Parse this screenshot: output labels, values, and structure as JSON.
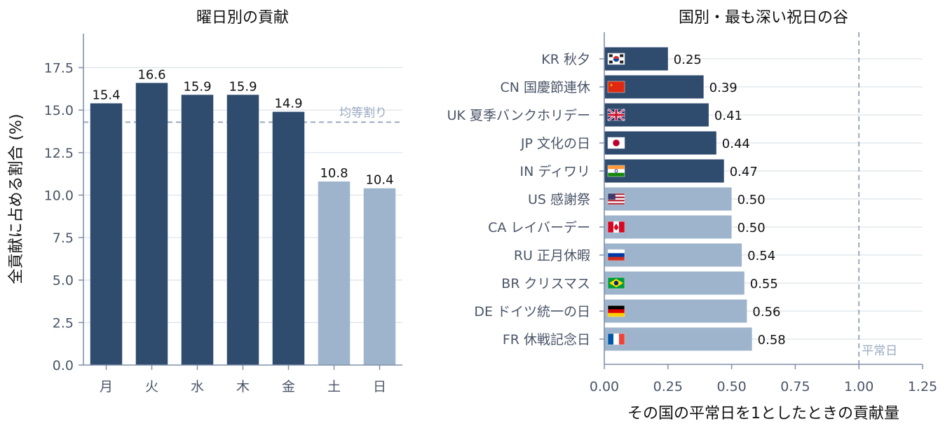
{
  "colors": {
    "dark": "#2f4b6e",
    "light": "#9db4cc",
    "grid": "#dde3ea",
    "axis": "#8090a8",
    "refline": "#9aa8bf"
  },
  "chart_data": [
    {
      "type": "bar",
      "title": "曜日別の貢献",
      "ylabel": "全貢献に占める割合 (%)",
      "xlabel": "",
      "categories": [
        "月",
        "火",
        "水",
        "木",
        "金",
        "土",
        "日"
      ],
      "values": [
        15.4,
        16.6,
        15.9,
        15.9,
        14.9,
        10.8,
        10.4
      ],
      "value_labels": [
        "15.4",
        "16.6",
        "15.9",
        "15.9",
        "14.9",
        "10.8",
        "10.4"
      ],
      "highlight": [
        true,
        true,
        true,
        true,
        true,
        false,
        false
      ],
      "ylim": [
        0,
        19.5
      ],
      "yticks": [
        0,
        2.5,
        5,
        7.5,
        10,
        12.5,
        15,
        17.5
      ],
      "ytick_labels": [
        "0.0",
        "2.5",
        "5.0",
        "7.5",
        "10.0",
        "12.5",
        "15.0",
        "17.5"
      ],
      "reference_line": {
        "value": 14.29,
        "label": "均等割り"
      },
      "grid": "y"
    },
    {
      "type": "bar",
      "orientation": "horizontal",
      "title": "国別・最も深い祝日の谷",
      "xlabel": "その国の平常日を1としたときの貢献量",
      "ylabel": "",
      "categories": [
        "KR 秋夕",
        "CN 国慶節連休",
        "UK 夏季バンクホリデー",
        "JP 文化の日",
        "IN ディワリ",
        "US 感謝祭",
        "CA レイバーデー",
        "RU 正月休暇",
        "BR クリスマス",
        "DE ドイツ統一の日",
        "FR 休戦記念日"
      ],
      "flags": [
        "KR",
        "CN",
        "UK",
        "JP",
        "IN",
        "US",
        "CA",
        "RU",
        "BR",
        "DE",
        "FR"
      ],
      "values": [
        0.25,
        0.39,
        0.41,
        0.44,
        0.47,
        0.5,
        0.5,
        0.54,
        0.55,
        0.56,
        0.58
      ],
      "value_labels": [
        "0.25",
        "0.39",
        "0.41",
        "0.44",
        "0.47",
        "0.50",
        "0.50",
        "0.54",
        "0.55",
        "0.56",
        "0.58"
      ],
      "highlight": [
        true,
        true,
        true,
        true,
        true,
        false,
        false,
        false,
        false,
        false,
        false
      ],
      "xlim": [
        0,
        1.25
      ],
      "xticks": [
        0,
        0.25,
        0.5,
        0.75,
        1.0,
        1.25
      ],
      "xtick_labels": [
        "0.00",
        "0.25",
        "0.50",
        "0.75",
        "1.00",
        "1.25"
      ],
      "reference_line": {
        "value": 1.0,
        "label": "平常日"
      },
      "grid": "y"
    }
  ]
}
